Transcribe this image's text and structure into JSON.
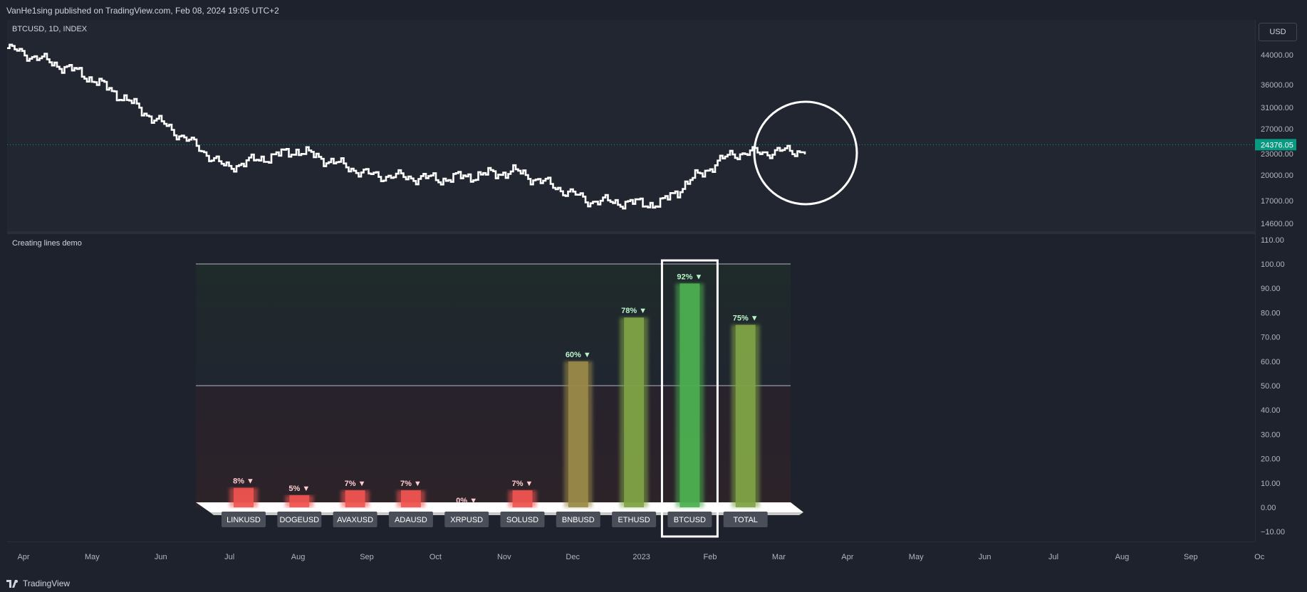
{
  "header": {
    "published": "VanHe1sing published on TradingView.com, Feb 08, 2024 19:05 UTC+2"
  },
  "price_pane": {
    "title": "BTCUSD, 1D, INDEX",
    "currency": "USD",
    "last_price": "24376.05",
    "last_price_color": "#089981",
    "line_color": "#ffffff",
    "y_ticks": [
      "44000.00",
      "36000.00",
      "31000.00",
      "27000.00",
      "23000.00",
      "20000.00",
      "17000.00",
      "14600.00"
    ]
  },
  "indicator_pane": {
    "title": "Creating lines demo",
    "y_ticks": [
      "110.00",
      "100.00",
      "90.00",
      "80.00",
      "70.00",
      "60.00",
      "50.00",
      "40.00",
      "30.00",
      "20.00",
      "10.00",
      "0.00",
      "−10.00"
    ]
  },
  "time_axis": [
    "Apr",
    "May",
    "Jun",
    "Jul",
    "Aug",
    "Sep",
    "Oct",
    "Nov",
    "Dec",
    "2023",
    "Feb",
    "Mar",
    "Apr",
    "May",
    "Jun",
    "Jul",
    "Aug",
    "Sep",
    "Oc"
  ],
  "footer": {
    "brand": "TradingView"
  },
  "chart_data": [
    {
      "type": "line",
      "title": "BTCUSD, 1D, INDEX",
      "x": [
        "Apr 2022",
        "May",
        "Jun",
        "Jul",
        "Aug",
        "Sep",
        "Oct",
        "Nov",
        "Dec",
        "2023",
        "Feb",
        "Mar"
      ],
      "series": [
        {
          "values": [
            46000,
            39000,
            29000,
            21000,
            23500,
            20000,
            19500,
            20500,
            17000,
            16600,
            23000,
            23500
          ]
        }
      ],
      "ylim": [
        14000,
        48000
      ],
      "last_value": 24376.05,
      "annotation": "circle around Feb–Mar 2023 price action"
    },
    {
      "type": "bar",
      "title": "Creating lines demo",
      "categories": [
        "LINKUSD",
        "DOGEUSD",
        "AVAXUSD",
        "ADAUSD",
        "XRPUSD",
        "SOLUSD",
        "BNBUSD",
        "ETHUSD",
        "BTCUSD",
        "TOTAL"
      ],
      "values": [
        8,
        5,
        7,
        7,
        0,
        7,
        60,
        78,
        92,
        75
      ],
      "labels": [
        "8%",
        "5%",
        "7%",
        "7%",
        "0%",
        "7%",
        "60%",
        "78%",
        "92%",
        "75%"
      ],
      "colors": [
        "#ef5350",
        "#ef5350",
        "#ef5350",
        "#ef5350",
        "#ef5350",
        "#ef5350",
        "#9a8a48",
        "#7fa346",
        "#4caf50",
        "#7fa346"
      ],
      "label_colors": [
        "#ffcdd2",
        "#ffcdd2",
        "#ffcdd2",
        "#ffcdd2",
        "#ffcdd2",
        "#ffcdd2",
        "#b9f6ca",
        "#b9f6ca",
        "#b9f6ca",
        "#b9f6ca"
      ],
      "reference_lines": [
        100,
        50
      ],
      "highlighted": "BTCUSD",
      "ylim": [
        -15,
        110
      ]
    }
  ]
}
